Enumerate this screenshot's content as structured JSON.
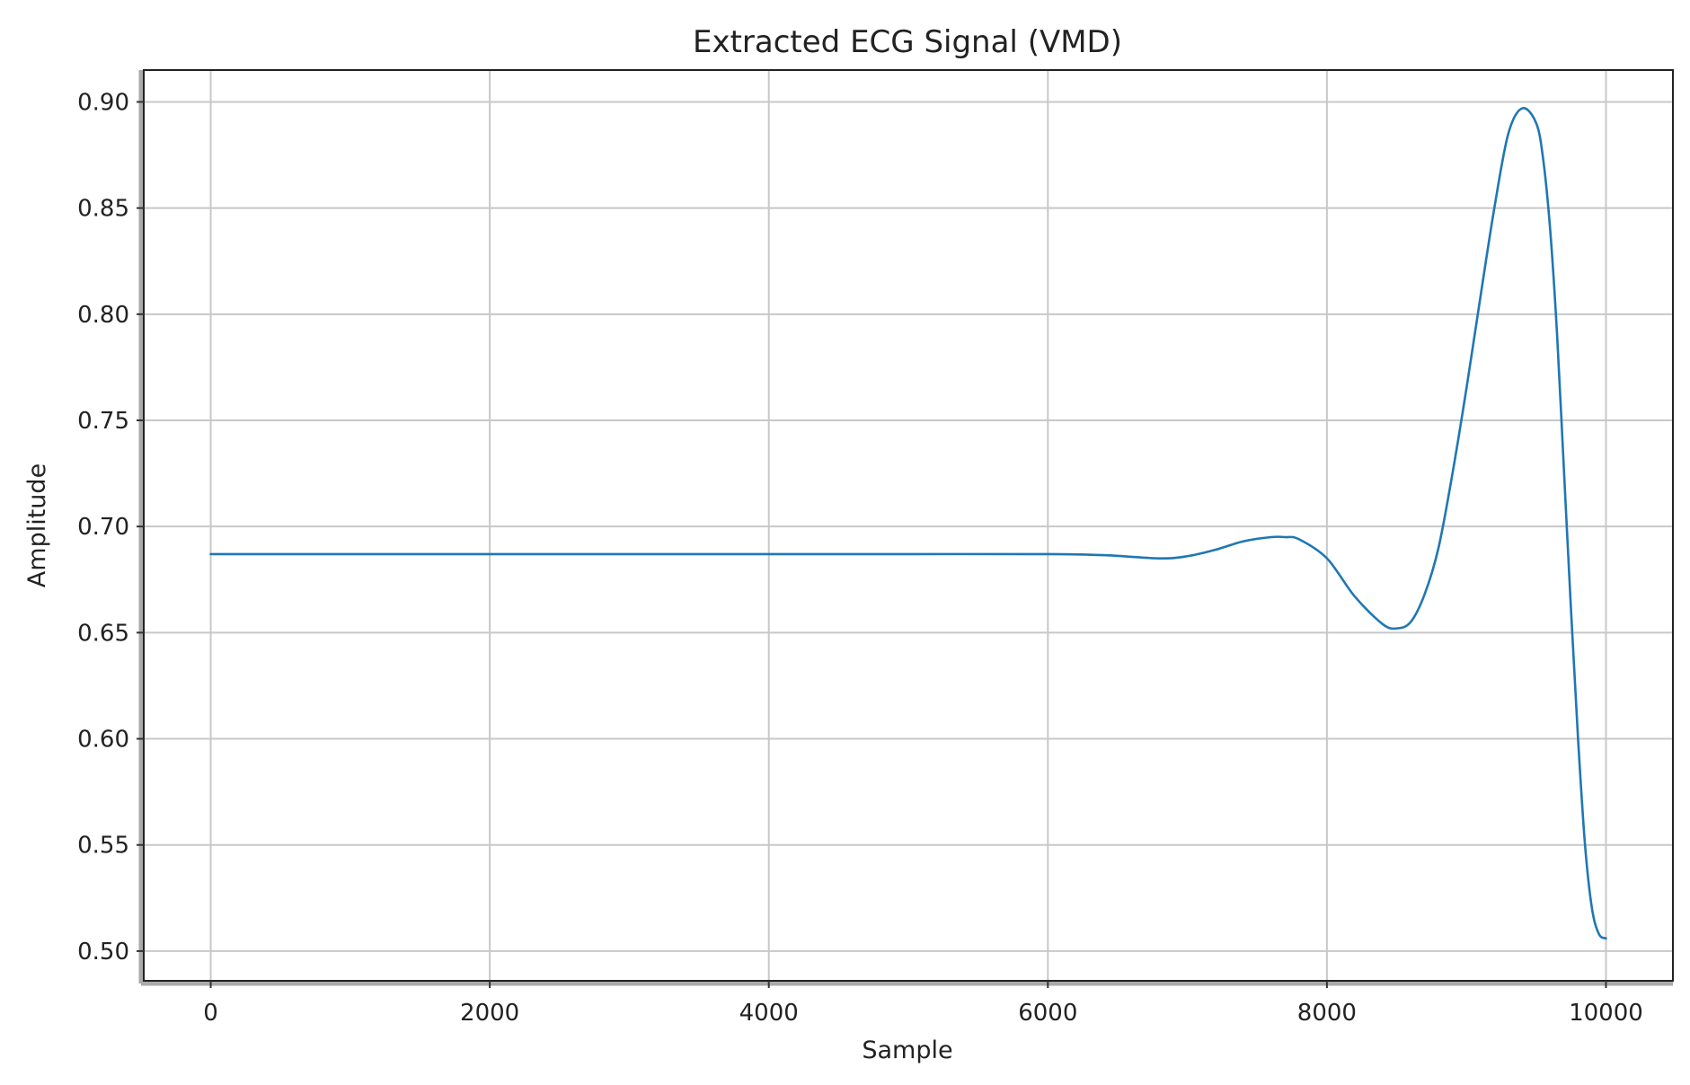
{
  "chart_data": {
    "type": "line",
    "title": "Extracted ECG Signal (VMD)",
    "xlabel": "Sample",
    "ylabel": "Amplitude",
    "xlim": [
      -480,
      10480
    ],
    "ylim": [
      0.486,
      0.915
    ],
    "xticks": [
      0,
      2000,
      4000,
      6000,
      8000,
      10000
    ],
    "xtick_labels": [
      "0",
      "2000",
      "4000",
      "6000",
      "8000",
      "10000"
    ],
    "yticks": [
      0.5,
      0.55,
      0.6,
      0.65,
      0.7,
      0.75,
      0.8,
      0.85,
      0.9
    ],
    "ytick_labels": [
      "0.50",
      "0.55",
      "0.60",
      "0.65",
      "0.70",
      "0.75",
      "0.80",
      "0.85",
      "0.90"
    ],
    "grid": true,
    "series": [
      {
        "color": "#1f77b4",
        "x": [
          0,
          1000,
          2000,
          3000,
          4000,
          5000,
          6000,
          6400,
          6800,
          7000,
          7200,
          7400,
          7600,
          7700,
          7800,
          8000,
          8200,
          8400,
          8500,
          8600,
          8700,
          8800,
          8900,
          9000,
          9100,
          9200,
          9300,
          9400,
          9500,
          9550,
          9600,
          9650,
          9700,
          9750,
          9800,
          9850,
          9900,
          9950,
          10000
        ],
        "y": [
          0.687,
          0.687,
          0.687,
          0.687,
          0.687,
          0.687,
          0.687,
          0.6865,
          0.685,
          0.686,
          0.689,
          0.693,
          0.695,
          0.695,
          0.694,
          0.685,
          0.667,
          0.654,
          0.652,
          0.655,
          0.668,
          0.69,
          0.725,
          0.765,
          0.808,
          0.85,
          0.885,
          0.897,
          0.89,
          0.873,
          0.84,
          0.79,
          0.725,
          0.66,
          0.6,
          0.55,
          0.52,
          0.508,
          0.506
        ]
      }
    ]
  }
}
